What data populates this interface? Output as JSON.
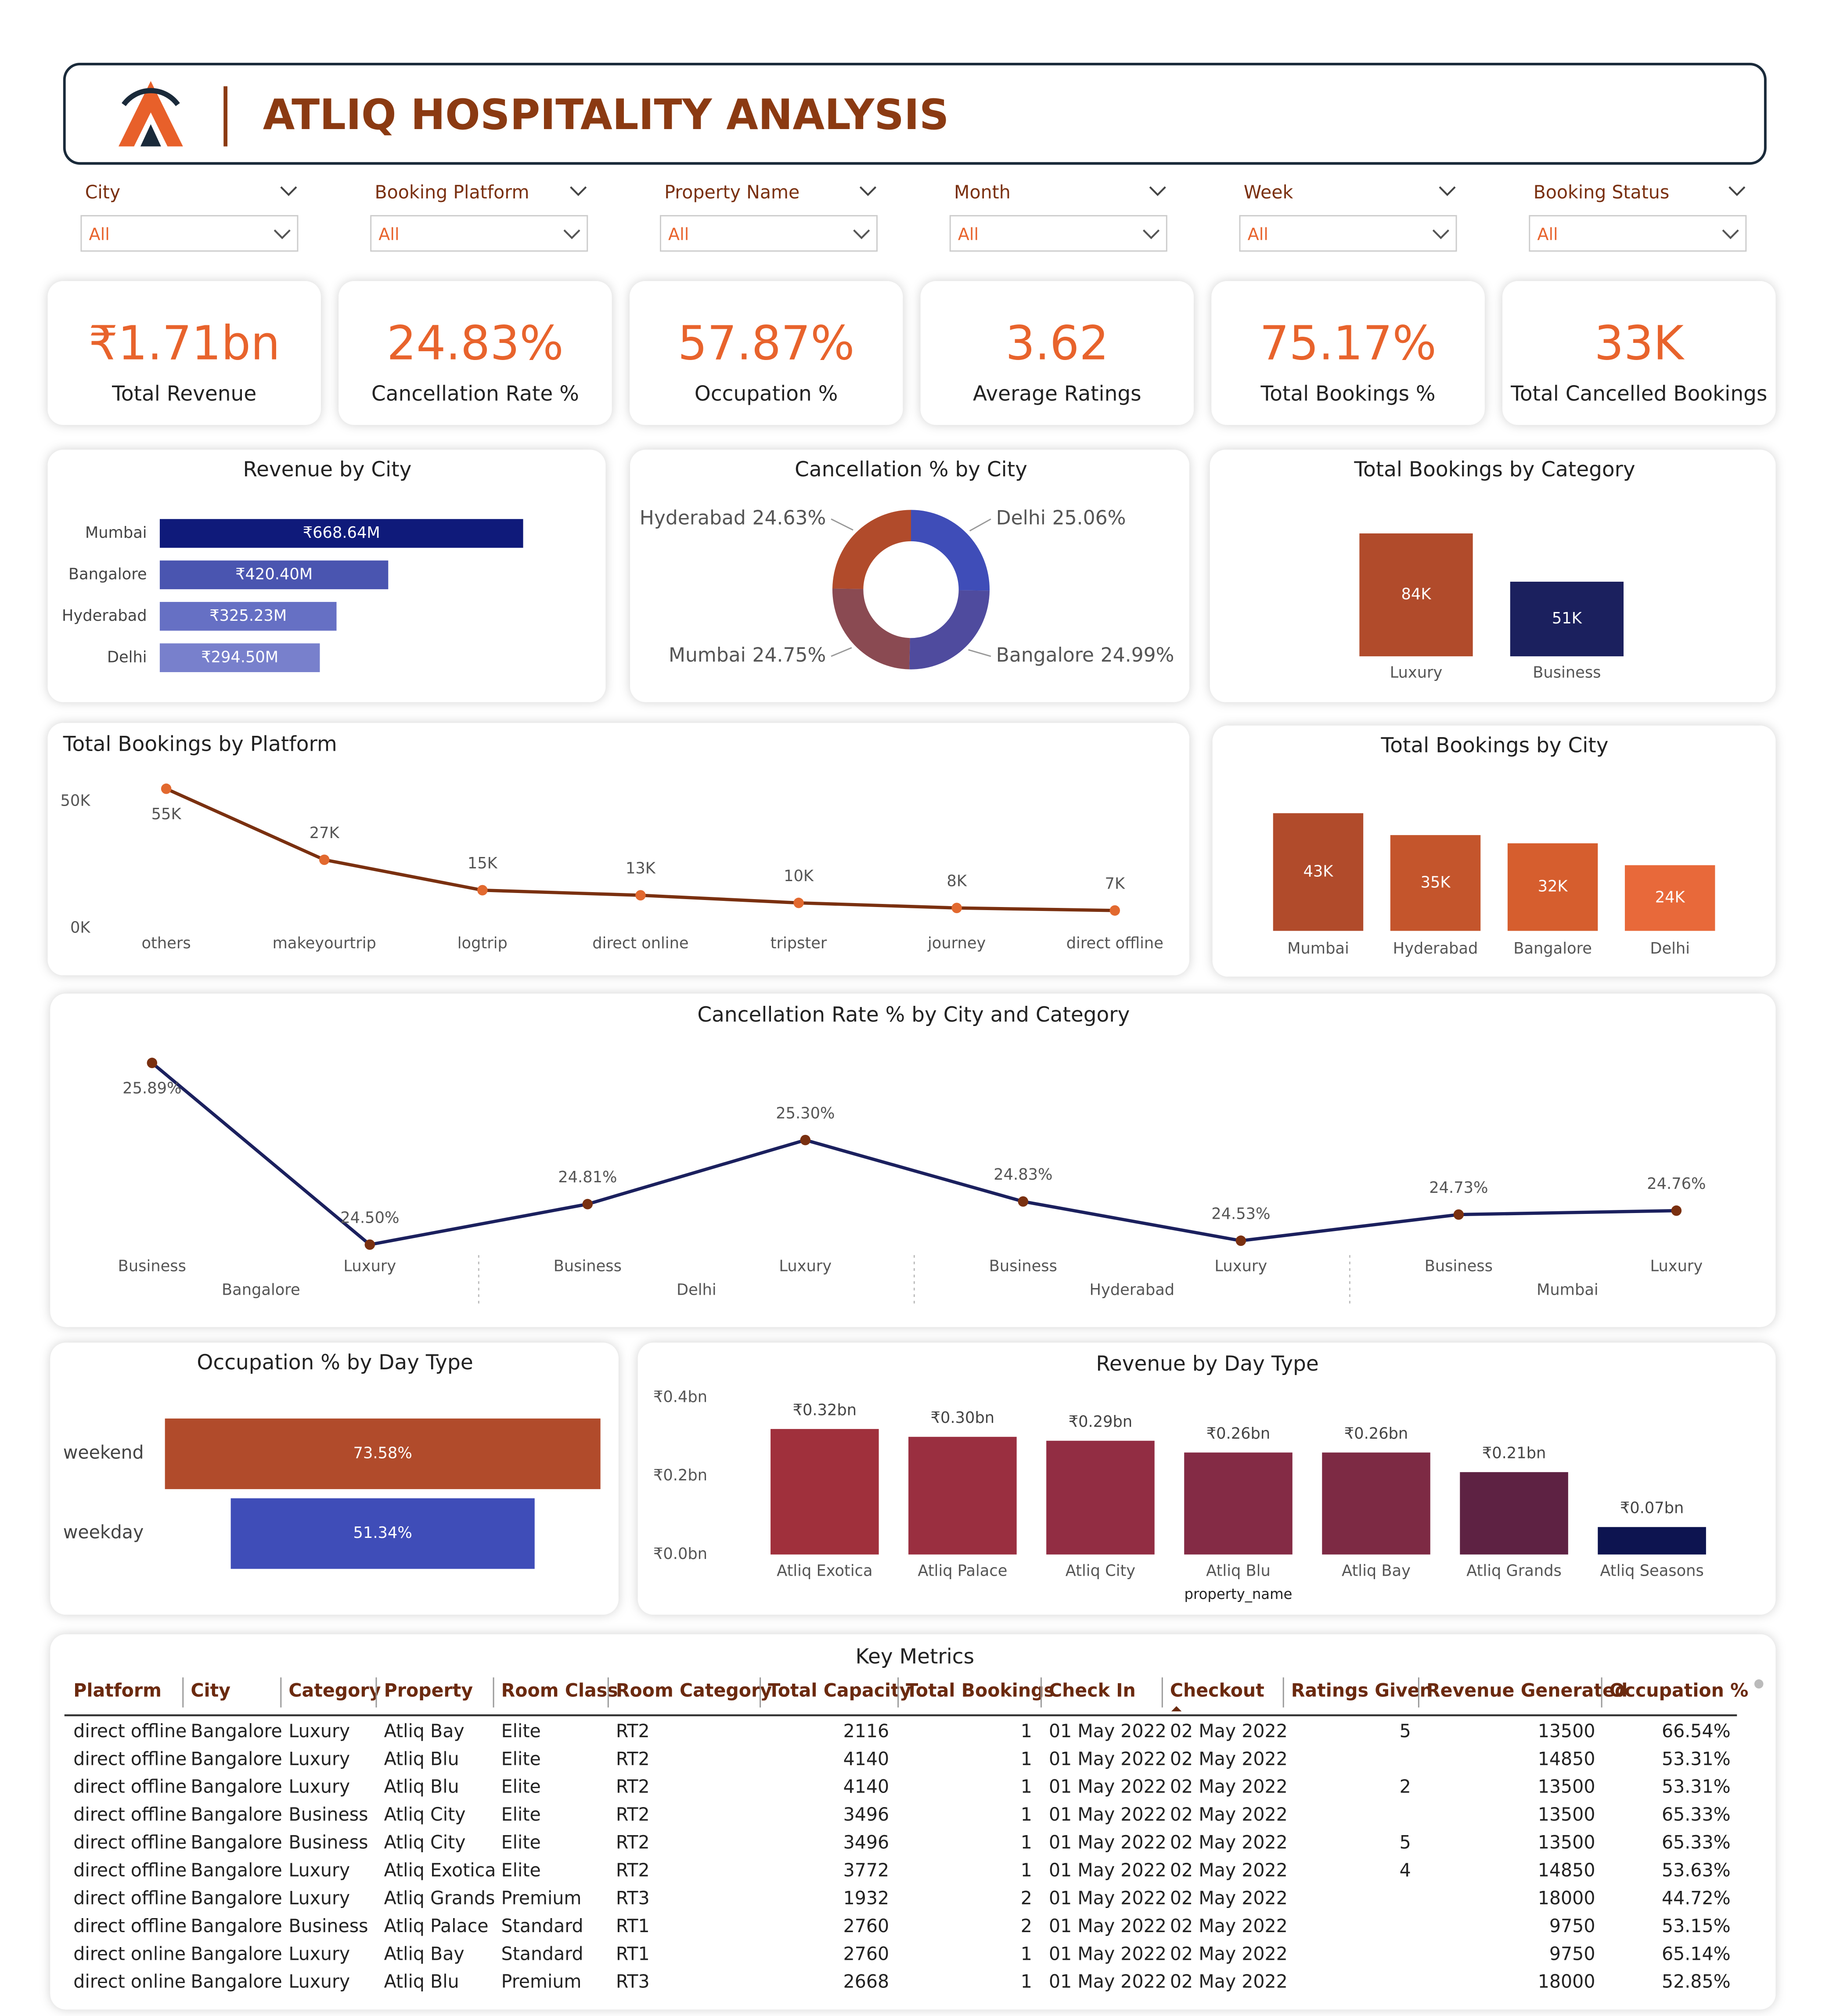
{
  "header": {
    "title": "ATLIQ HOSPITALITY ANALYSIS"
  },
  "filters": [
    {
      "label": "City",
      "value": "All"
    },
    {
      "label": "Booking Platform",
      "value": "All"
    },
    {
      "label": "Property Name",
      "value": "All"
    },
    {
      "label": "Month",
      "value": "All"
    },
    {
      "label": "Week",
      "value": "All"
    },
    {
      "label": "Booking Status",
      "value": "All"
    }
  ],
  "kpis": [
    {
      "value": "₹1.71bn",
      "label": "Total Revenue"
    },
    {
      "value": "24.83%",
      "label": "Cancellation Rate %"
    },
    {
      "value": "57.87%",
      "label": "Occupation %"
    },
    {
      "value": "3.62",
      "label": "Average Ratings"
    },
    {
      "value": "75.17%",
      "label": "Total Bookings %"
    },
    {
      "value": "33K",
      "label": "Total Cancelled Bookings"
    }
  ],
  "chart_data": [
    {
      "type": "hbar",
      "title": "Revenue by City",
      "categories": [
        "Mumbai",
        "Bangalore",
        "Hyderabad",
        "Delhi"
      ],
      "values": [
        668.64,
        420.4,
        325.23,
        294.5
      ],
      "value_labels": [
        "₹668.64M",
        "₹420.40M",
        "₹325.23M",
        "₹294.50M"
      ],
      "colors": [
        "#0f1a7a",
        "#4a55b0",
        "#6670c4",
        "#7880cc"
      ]
    },
    {
      "type": "donut",
      "title": "Cancellation % by City",
      "categories": [
        "Delhi",
        "Bangalore",
        "Mumbai",
        "Hyderabad"
      ],
      "values": [
        25.06,
        24.99,
        24.75,
        24.63
      ],
      "value_labels": [
        "25.06%",
        "24.99%",
        "24.75%",
        "24.63%"
      ],
      "colors": [
        "#3f4db8",
        "#4f4b9e",
        "#8a4a52",
        "#b14b2b"
      ]
    },
    {
      "type": "bar",
      "title": "Total Bookings by Category",
      "categories": [
        "Luxury",
        "Business"
      ],
      "values": [
        84000,
        51000
      ],
      "value_labels": [
        "84K",
        "51K"
      ],
      "colors": [
        "#b14b2b",
        "#1b205e"
      ]
    },
    {
      "type": "line",
      "title": "Total Bookings by Platform",
      "categories": [
        "others",
        "makeyourtrip",
        "logtrip",
        "direct online",
        "tripster",
        "journey",
        "direct offline"
      ],
      "values": [
        55000,
        27000,
        15000,
        13000,
        10000,
        8000,
        7000
      ],
      "value_labels": [
        "55K",
        "27K",
        "15K",
        "13K",
        "10K",
        "8K",
        "7K"
      ],
      "color": "#7a3010",
      "marker_color": "#e2692f",
      "ylim": [
        0,
        60000
      ],
      "yticks": [
        {
          "value": 0,
          "label": "0K"
        },
        {
          "value": 50000,
          "label": "50K"
        }
      ]
    },
    {
      "type": "bar",
      "title": "Total Bookings by City",
      "categories": [
        "Mumbai",
        "Hyderabad",
        "Bangalore",
        "Delhi"
      ],
      "values": [
        43000,
        35000,
        32000,
        24000
      ],
      "value_labels": [
        "43K",
        "35K",
        "32K",
        "24K"
      ],
      "colors": [
        "#b14b2b",
        "#c4552c",
        "#d65e2e",
        "#e8693a"
      ]
    },
    {
      "type": "line",
      "title": "Cancellation Rate % by City and Category",
      "categories": [
        "Business",
        "Luxury",
        "Business",
        "Luxury",
        "Business",
        "Luxury",
        "Business",
        "Luxury"
      ],
      "groups": [
        "Bangalore",
        "Delhi",
        "Hyderabad",
        "Mumbai"
      ],
      "values": [
        25.89,
        24.5,
        24.81,
        25.3,
        24.83,
        24.53,
        24.73,
        24.76
      ],
      "value_labels": [
        "25.89%",
        "24.50%",
        "24.81%",
        "25.30%",
        "24.83%",
        "24.53%",
        "24.73%",
        "24.76%"
      ],
      "color": "#1b205e",
      "marker_color": "#7a3010"
    },
    {
      "type": "funnel",
      "title": "Occupation % by Day Type",
      "categories": [
        "weekend",
        "weekday"
      ],
      "values": [
        73.58,
        51.34
      ],
      "value_labels": [
        "73.58%",
        "51.34%"
      ],
      "colors": [
        "#b14b2b",
        "#3f4db8"
      ]
    },
    {
      "type": "bar",
      "title": "Revenue by Day Type",
      "categories": [
        "Atliq Exotica",
        "Atliq Palace",
        "Atliq City",
        "Atliq Blu",
        "Atliq Bay",
        "Atliq Grands",
        "Atliq Seasons"
      ],
      "values": [
        0.32,
        0.3,
        0.29,
        0.26,
        0.26,
        0.21,
        0.07
      ],
      "value_labels": [
        "₹0.32bn",
        "₹0.30bn",
        "₹0.29bn",
        "₹0.26bn",
        "₹0.26bn",
        "₹0.21bn",
        "₹0.07bn"
      ],
      "x_label": "property_name",
      "ylim": [
        0,
        0.4
      ],
      "yticks": [
        {
          "value": 0,
          "label": "₹0.0bn"
        },
        {
          "value": 0.2,
          "label": "₹0.2bn"
        },
        {
          "value": 0.4,
          "label": "₹0.4bn"
        }
      ],
      "colors": [
        "#a0303c",
        "#9a2f40",
        "#922d43",
        "#842b45",
        "#7d2a44",
        "#5e2243",
        "#0d1450"
      ]
    }
  ],
  "table": {
    "title": "Key Metrics",
    "columns": [
      "Platform",
      "City",
      "Category",
      "Property",
      "Room Class",
      "Room Category",
      "Total Capacity",
      "Total Bookings",
      "Check In",
      "Checkout",
      "Ratings Given",
      "Revenue Generated",
      "Occupation %"
    ],
    "rows": [
      [
        "direct offline",
        "Bangalore",
        "Luxury",
        "Atliq Bay",
        "Elite",
        "RT2",
        2116,
        1,
        "01 May 2022",
        "02 May 2022",
        5,
        13500,
        "66.54%"
      ],
      [
        "direct offline",
        "Bangalore",
        "Luxury",
        "Atliq Blu",
        "Elite",
        "RT2",
        4140,
        1,
        "01 May 2022",
        "02 May 2022",
        null,
        14850,
        "53.31%"
      ],
      [
        "direct offline",
        "Bangalore",
        "Luxury",
        "Atliq Blu",
        "Elite",
        "RT2",
        4140,
        1,
        "01 May 2022",
        "02 May 2022",
        2,
        13500,
        "53.31%"
      ],
      [
        "direct offline",
        "Bangalore",
        "Business",
        "Atliq City",
        "Elite",
        "RT2",
        3496,
        1,
        "01 May 2022",
        "02 May 2022",
        null,
        13500,
        "65.33%"
      ],
      [
        "direct offline",
        "Bangalore",
        "Business",
        "Atliq City",
        "Elite",
        "RT2",
        3496,
        1,
        "01 May 2022",
        "02 May 2022",
        5,
        13500,
        "65.33%"
      ],
      [
        "direct offline",
        "Bangalore",
        "Luxury",
        "Atliq Exotica",
        "Elite",
        "RT2",
        3772,
        1,
        "01 May 2022",
        "02 May 2022",
        4,
        14850,
        "53.63%"
      ],
      [
        "direct offline",
        "Bangalore",
        "Luxury",
        "Atliq Grands",
        "Premium",
        "RT3",
        1932,
        2,
        "01 May 2022",
        "02 May 2022",
        null,
        18000,
        "44.72%"
      ],
      [
        "direct offline",
        "Bangalore",
        "Business",
        "Atliq Palace",
        "Standard",
        "RT1",
        2760,
        2,
        "01 May 2022",
        "02 May 2022",
        null,
        9750,
        "53.15%"
      ],
      [
        "direct online",
        "Bangalore",
        "Luxury",
        "Atliq Bay",
        "Standard",
        "RT1",
        2760,
        1,
        "01 May 2022",
        "02 May 2022",
        null,
        9750,
        "65.14%"
      ],
      [
        "direct online",
        "Bangalore",
        "Luxury",
        "Atliq Blu",
        "Premium",
        "RT3",
        2668,
        1,
        "01 May 2022",
        "02 May 2022",
        null,
        18000,
        "52.85%"
      ]
    ]
  }
}
